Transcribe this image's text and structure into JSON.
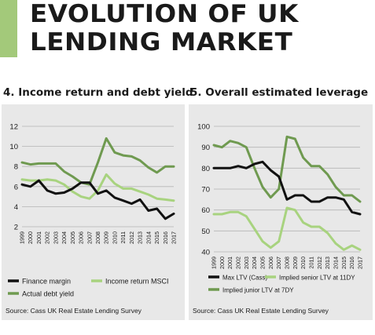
{
  "header": {
    "title_line1": "EVOLUTION OF UK",
    "title_line2": "LENDING MARKET",
    "accent_color": "#a3c97a"
  },
  "chart_data": [
    {
      "type": "line",
      "title": "4. Income return and debt yield",
      "xlabel": "",
      "ylabel": "",
      "x": [
        "1999",
        "2000",
        "2001",
        "2002",
        "2003",
        "2004",
        "2005",
        "2006",
        "2007",
        "2008",
        "2009",
        "2010",
        "2011",
        "2012",
        "2013",
        "2014",
        "2015",
        "2016",
        "2017"
      ],
      "ylim": [
        2,
        12
      ],
      "yticks": [
        2,
        4,
        6,
        8,
        10,
        12
      ],
      "grid": true,
      "legend_position": "bottom",
      "series": [
        {
          "name": "Finance margin",
          "color": "#111111",
          "values": [
            6.2,
            6.0,
            6.6,
            5.6,
            5.3,
            5.4,
            5.8,
            6.4,
            6.4,
            5.3,
            5.6,
            4.9,
            4.6,
            4.3,
            4.7,
            3.6,
            3.8,
            2.8,
            3.3
          ]
        },
        {
          "name": "Income return MSCI",
          "color": "#a8d37f",
          "values": [
            6.7,
            6.6,
            6.6,
            6.7,
            6.6,
            6.2,
            5.5,
            5.0,
            4.8,
            5.6,
            7.2,
            6.3,
            5.8,
            5.8,
            5.5,
            5.2,
            4.8,
            4.7,
            4.6
          ]
        },
        {
          "name": "Actual debt yield",
          "color": "#6f9a50",
          "values": [
            8.4,
            8.2,
            8.3,
            8.3,
            8.3,
            7.5,
            7.0,
            6.4,
            6.2,
            8.4,
            10.8,
            9.4,
            9.1,
            9.0,
            8.6,
            7.9,
            7.4,
            8.0,
            8.0
          ]
        }
      ],
      "source": "Source: Cass UK Real Estate Lending Survey"
    },
    {
      "type": "line",
      "title": "5. Overall estimated leverage",
      "xlabel": "",
      "ylabel": "",
      "x": [
        "1999",
        "2000",
        "2001",
        "2002",
        "2003",
        "2004",
        "2005",
        "2006",
        "2007",
        "2008",
        "2009",
        "2010",
        "2011",
        "2012",
        "2013",
        "2014",
        "2015",
        "2016",
        "2017"
      ],
      "ylim": [
        40,
        100
      ],
      "yticks": [
        40,
        50,
        60,
        70,
        80,
        90,
        100
      ],
      "grid": true,
      "legend_position": "bottom",
      "series": [
        {
          "name": "Max LTV (Cass)",
          "color": "#111111",
          "values": [
            80,
            80,
            80,
            81,
            80,
            82,
            83,
            79,
            76,
            65,
            67,
            67,
            64,
            64,
            66,
            66,
            65,
            59,
            58
          ]
        },
        {
          "name": "Implied senior LTV at 11DY",
          "color": "#a8d37f",
          "values": [
            58,
            58,
            59,
            59,
            57,
            51,
            45,
            42,
            45,
            61,
            60,
            54,
            52,
            52,
            49,
            44,
            41,
            43,
            41
          ]
        },
        {
          "name": "Implied junior LTV at 7DY",
          "color": "#6f9a50",
          "values": [
            91,
            90,
            93,
            92,
            90,
            80,
            71,
            66,
            70,
            95,
            94,
            85,
            81,
            81,
            77,
            71,
            67,
            67,
            64
          ]
        }
      ],
      "source": "Source: Cass UK Real Estate Lending Survey"
    }
  ]
}
